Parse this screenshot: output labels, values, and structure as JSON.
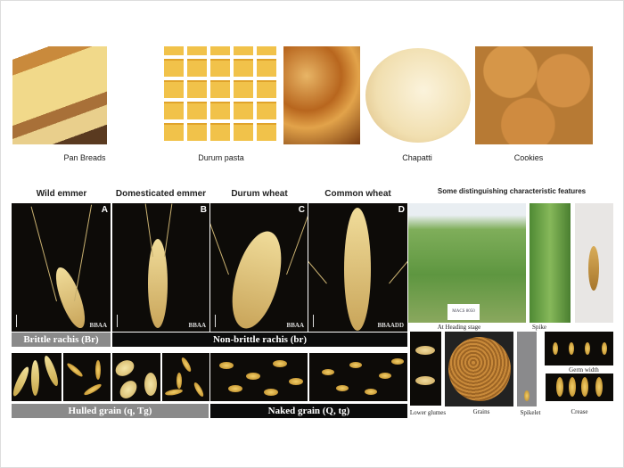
{
  "top_row": {
    "items": [
      {
        "label": "Pan Breads",
        "icon": "bread-photo"
      },
      {
        "label": "Durum pasta",
        "icon": "pasta-photo"
      },
      {
        "label": "",
        "icon": "baked-goods-photo"
      },
      {
        "label": "Chapatti",
        "icon": "chapatti-photo"
      },
      {
        "label": "Cookies",
        "icon": "cookies-photo"
      }
    ]
  },
  "species": [
    {
      "name": "Wild emmer",
      "letter": "A",
      "genome": "BBAA"
    },
    {
      "name": "Domesticated emmer",
      "letter": "B",
      "genome": "BBAA"
    },
    {
      "name": "Durum wheat",
      "letter": "C",
      "genome": "BBAA"
    },
    {
      "name": "Common wheat",
      "letter": "D",
      "genome": "BBAADD"
    }
  ],
  "rachis": {
    "brittle": "Brittle rachis (Br)",
    "non_brittle": "Non-brittle rachis (br)"
  },
  "grain": {
    "hulled": "Hulled grain (q, Tg)",
    "naked": "Naked grain (Q, tg)"
  },
  "features": {
    "title": "Some distinguishing characteristic features",
    "sign": "MACS 8050",
    "captions": {
      "heading": "At Heading stage",
      "spike": "Spike",
      "glumes": "Lower glumes",
      "grains": "Grains",
      "spikelet": "Spikelet",
      "germ": "Germ width",
      "crease": "Crease"
    }
  },
  "colors": {
    "gray_bar": "#8a8a8a",
    "black_bar": "#0c0c0c",
    "panel_bg": "#0d0b08"
  }
}
